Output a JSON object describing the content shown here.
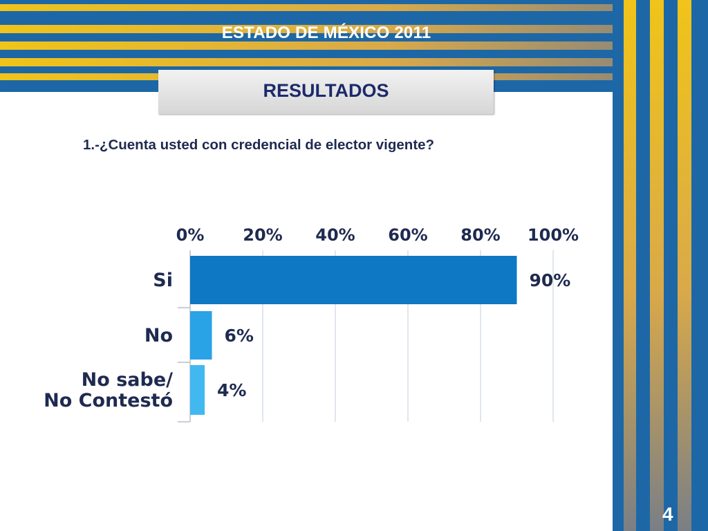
{
  "header": {
    "title": "ESTADO DE MÉXICO 2011"
  },
  "section": {
    "label": "RESULTADOS"
  },
  "question": {
    "text": "1.-¿Cuenta usted con credencial de elector vigente?"
  },
  "page": {
    "number": "4"
  },
  "colors": {
    "band_blue": "#1d67a6",
    "band_gold": "#f0c419",
    "band_gray": "#7a7f86",
    "bar_si": "#0e78c4",
    "bar_no": "#2aa2e6",
    "bar_ns": "#42b8f0",
    "text_dark": "#1f2a50"
  },
  "chart_data": {
    "type": "bar",
    "orientation": "horizontal",
    "categories": [
      "Si",
      "No",
      "No sabe/\nNo Contestó"
    ],
    "values": [
      90,
      6,
      4
    ],
    "value_labels": [
      "90%",
      "6%",
      "4%"
    ],
    "xlim": [
      0,
      100
    ],
    "x_ticks": [
      "0%",
      "20%",
      "40%",
      "60%",
      "80%",
      "100%"
    ],
    "x_axis_position": "top",
    "grid": true
  }
}
